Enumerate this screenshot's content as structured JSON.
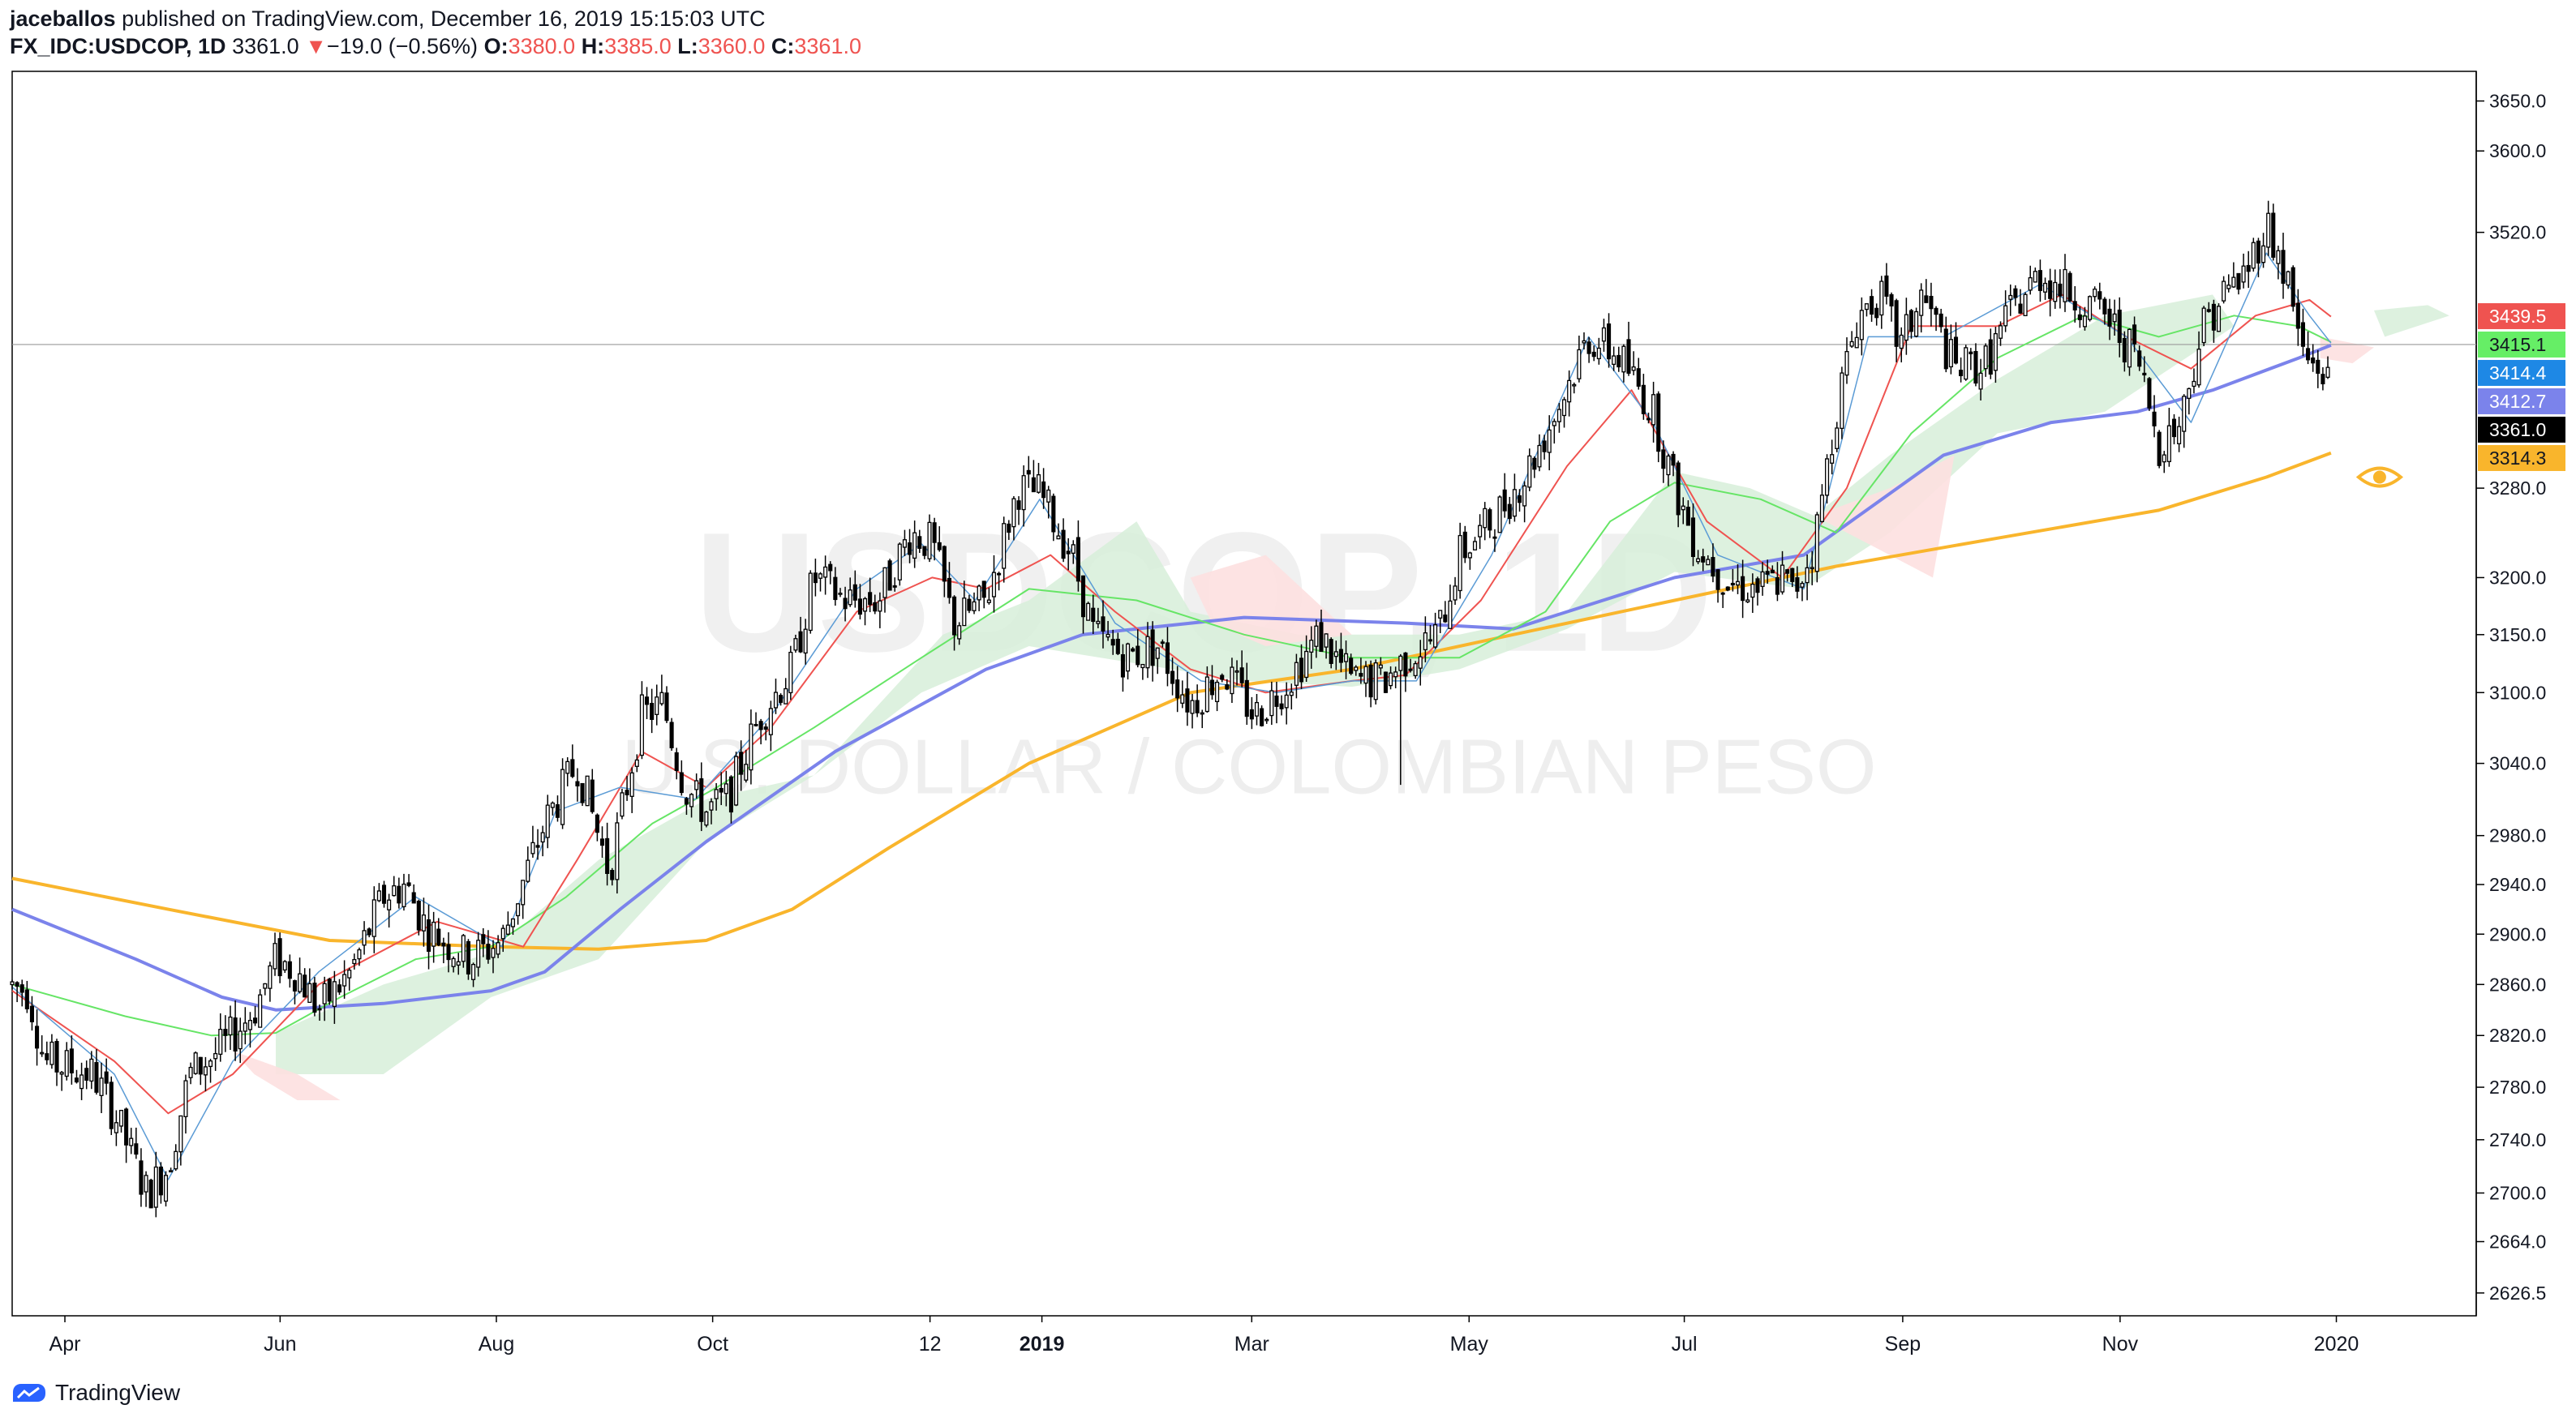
{
  "header": {
    "author": "jaceballos",
    "published_text": " published on TradingView.com, December 16, 2019 15:15:03 UTC",
    "symbol": "FX_IDC:USDCOP, 1D",
    "last_price": "3361.0",
    "down_arrow": "▼",
    "change": "−19.0 (−0.56%)",
    "open_label": "O:",
    "open": "3380.0",
    "high_label": "H:",
    "high": "3385.0",
    "low_label": "L:",
    "low": "3360.0",
    "close_label": "C:",
    "close": "3361.0"
  },
  "footer": {
    "brand": "TradingView"
  },
  "chart_data": {
    "type": "candlestick",
    "watermark": {
      "symbol": "USDCOP, 1D",
      "description": "U.S. DOLLAR / COLOMBIAN PESO"
    },
    "x_ticks": [
      {
        "label": "Apr",
        "t": 0.04,
        "bold": false
      },
      {
        "label": "Jun",
        "t": 2.04,
        "bold": false
      },
      {
        "label": "Aug",
        "t": 4.05,
        "bold": false
      },
      {
        "label": "Oct",
        "t": 6.06,
        "bold": false
      },
      {
        "label": "12",
        "t": 8.08,
        "bold": false
      },
      {
        "label": "2019",
        "t": 9.12,
        "bold": true
      },
      {
        "label": "Mar",
        "t": 11.07,
        "bold": false
      },
      {
        "label": "May",
        "t": 13.09,
        "bold": false
      },
      {
        "label": "Jul",
        "t": 15.09,
        "bold": false
      },
      {
        "label": "Sep",
        "t": 17.12,
        "bold": false
      },
      {
        "label": "Nov",
        "t": 19.14,
        "bold": false
      },
      {
        "label": "2020",
        "t": 21.15,
        "bold": false
      }
    ],
    "y_ticks": [
      2626.5,
      2664.0,
      2700.0,
      2740.0,
      2780.0,
      2820.0,
      2860.0,
      2900.0,
      2940.0,
      2980.0,
      3040.0,
      3100.0,
      3150.0,
      3200.0,
      3280.0,
      3520.0,
      3600.0,
      3650.0
    ],
    "y_scale": "log",
    "y_range": [
      2610,
      3680
    ],
    "x_range_months": [
      -0.45,
      22.45
    ],
    "price_line": 3412.7,
    "price_labels": [
      {
        "value": "3439.5",
        "y": 3439.5,
        "bg": "#ef5350",
        "fg": "#ffffff"
      },
      {
        "value": "3415.1",
        "y": 3415.1,
        "bg": "#66ee66",
        "fg": "#131722"
      },
      {
        "value": "3414.4",
        "y": 3414.4,
        "bg": "#1e88e5",
        "fg": "#ffffff"
      },
      {
        "value": "3412.7",
        "y": 3412.7,
        "bg": "#7b83eb",
        "fg": "#ffffff"
      },
      {
        "value": "3361.0",
        "y": 3361.0,
        "bg": "#000000",
        "fg": "#ffffff"
      },
      {
        "value": "3314.3",
        "y": 3314.3,
        "bg": "#f9b52c",
        "fg": "#131722"
      }
    ],
    "price_path": [
      [
        -0.45,
        2860
      ],
      [
        -0.3,
        2855
      ],
      [
        -0.15,
        2800
      ],
      [
        0.3,
        2790
      ],
      [
        0.5,
        2760
      ],
      [
        0.8,
        2700
      ],
      [
        1.0,
        2720
      ],
      [
        1.2,
        2790
      ],
      [
        1.5,
        2810
      ],
      [
        1.8,
        2840
      ],
      [
        2.0,
        2880
      ],
      [
        2.2,
        2870
      ],
      [
        2.4,
        2840
      ],
      [
        2.7,
        2870
      ],
      [
        3.0,
        2930
      ],
      [
        3.2,
        2940
      ],
      [
        3.4,
        2905
      ],
      [
        3.8,
        2880
      ],
      [
        4.1,
        2895
      ],
      [
        4.5,
        2990
      ],
      [
        4.8,
        3040
      ],
      [
        5.1,
        2950
      ],
      [
        5.4,
        3080
      ],
      [
        5.6,
        3090
      ],
      [
        5.8,
        3020
      ],
      [
        6.0,
        3000
      ],
      [
        6.2,
        3010
      ],
      [
        6.5,
        3080
      ],
      [
        6.8,
        3120
      ],
      [
        7.0,
        3200
      ],
      [
        7.3,
        3180
      ],
      [
        7.6,
        3180
      ],
      [
        7.9,
        3240
      ],
      [
        8.1,
        3230
      ],
      [
        8.3,
        3160
      ],
      [
        8.6,
        3180
      ],
      [
        8.9,
        3280
      ],
      [
        9.1,
        3275
      ],
      [
        9.4,
        3220
      ],
      [
        9.6,
        3150
      ],
      [
        9.9,
        3130
      ],
      [
        10.2,
        3140
      ],
      [
        10.5,
        3090
      ],
      [
        10.8,
        3120
      ],
      [
        11.1,
        3080
      ],
      [
        11.4,
        3110
      ],
      [
        11.7,
        3150
      ],
      [
        12.0,
        3110
      ],
      [
        12.3,
        3110
      ],
      [
        12.5,
        3130
      ],
      [
        12.8,
        3150
      ],
      [
        13.0,
        3220
      ],
      [
        13.3,
        3250
      ],
      [
        13.6,
        3290
      ],
      [
        13.9,
        3350
      ],
      [
        14.2,
        3420
      ],
      [
        14.5,
        3400
      ],
      [
        14.8,
        3350
      ],
      [
        15.0,
        3280
      ],
      [
        15.2,
        3230
      ],
      [
        15.5,
        3195
      ],
      [
        15.8,
        3190
      ],
      [
        16.0,
        3200
      ],
      [
        16.1,
        3185
      ],
      [
        16.3,
        3230
      ],
      [
        16.5,
        3350
      ],
      [
        16.7,
        3440
      ],
      [
        16.9,
        3460
      ],
      [
        17.1,
        3410
      ],
      [
        17.3,
        3460
      ],
      [
        17.6,
        3390
      ],
      [
        17.9,
        3395
      ],
      [
        18.1,
        3440
      ],
      [
        18.4,
        3480
      ],
      [
        18.7,
        3460
      ],
      [
        19.0,
        3440
      ],
      [
        19.3,
        3400
      ],
      [
        19.5,
        3320
      ],
      [
        19.7,
        3340
      ],
      [
        19.9,
        3430
      ],
      [
        20.1,
        3460
      ],
      [
        20.3,
        3480
      ],
      [
        20.5,
        3530
      ],
      [
        20.7,
        3470
      ],
      [
        20.85,
        3400
      ],
      [
        21.0,
        3390
      ],
      [
        21.1,
        3375
      ]
    ],
    "spikes": [
      {
        "t": 12.45,
        "low": 3022
      },
      {
        "t": 20.55,
        "high": 3548
      },
      {
        "t": 0.88,
        "low": 2682
      }
    ],
    "series": [
      {
        "type": "line",
        "color": "#f9b52c",
        "width": 4,
        "points": [
          [
            -0.45,
            2945
          ],
          [
            1.0,
            2920
          ],
          [
            2.5,
            2895
          ],
          [
            4.0,
            2890
          ],
          [
            5.0,
            2888
          ],
          [
            6.0,
            2895
          ],
          [
            6.8,
            2920
          ],
          [
            7.7,
            2970
          ],
          [
            9.0,
            3040
          ],
          [
            10.5,
            3100
          ],
          [
            12.0,
            3120
          ],
          [
            13.5,
            3150
          ],
          [
            15.0,
            3180
          ],
          [
            16.5,
            3210
          ],
          [
            18.0,
            3235
          ],
          [
            19.5,
            3260
          ],
          [
            20.5,
            3290
          ],
          [
            21.1,
            3312
          ]
        ]
      },
      {
        "type": "line",
        "color": "#7b83eb",
        "width": 4,
        "points": [
          [
            -0.45,
            2920
          ],
          [
            0.7,
            2880
          ],
          [
            1.5,
            2850
          ],
          [
            2.0,
            2840
          ],
          [
            3.0,
            2845
          ],
          [
            4.0,
            2855
          ],
          [
            4.5,
            2870
          ],
          [
            5.2,
            2920
          ],
          [
            6.0,
            2975
          ],
          [
            7.2,
            3050
          ],
          [
            8.6,
            3120
          ],
          [
            9.5,
            3150
          ],
          [
            11.0,
            3165
          ],
          [
            12.5,
            3160
          ],
          [
            13.5,
            3155
          ],
          [
            15.0,
            3200
          ],
          [
            16.2,
            3220
          ],
          [
            17.5,
            3310
          ],
          [
            18.5,
            3340
          ],
          [
            19.3,
            3350
          ],
          [
            20.0,
            3370
          ],
          [
            20.8,
            3400
          ],
          [
            21.1,
            3412
          ]
        ]
      },
      {
        "type": "line",
        "color": "#66e566",
        "width": 2,
        "points": [
          [
            -0.45,
            2860
          ],
          [
            0.6,
            2835
          ],
          [
            1.4,
            2820
          ],
          [
            2.0,
            2822
          ],
          [
            2.6,
            2850
          ],
          [
            3.3,
            2880
          ],
          [
            4.0,
            2890
          ],
          [
            4.7,
            2930
          ],
          [
            5.5,
            2990
          ],
          [
            6.1,
            3020
          ],
          [
            7.0,
            3070
          ],
          [
            8.0,
            3130
          ],
          [
            9.0,
            3190
          ],
          [
            10.0,
            3180
          ],
          [
            11.0,
            3150
          ],
          [
            12.0,
            3130
          ],
          [
            13.0,
            3130
          ],
          [
            13.8,
            3170
          ],
          [
            14.4,
            3250
          ],
          [
            15.0,
            3285
          ],
          [
            15.8,
            3270
          ],
          [
            16.5,
            3240
          ],
          [
            17.2,
            3330
          ],
          [
            18.0,
            3400
          ],
          [
            18.8,
            3440
          ],
          [
            19.5,
            3420
          ],
          [
            20.2,
            3440
          ],
          [
            20.8,
            3430
          ],
          [
            21.1,
            3415
          ]
        ]
      },
      {
        "type": "line",
        "color": "#ef5350",
        "width": 2,
        "points": [
          [
            -0.45,
            2855
          ],
          [
            0.5,
            2800
          ],
          [
            1.0,
            2760
          ],
          [
            1.6,
            2790
          ],
          [
            2.4,
            2860
          ],
          [
            3.5,
            2910
          ],
          [
            4.3,
            2890
          ],
          [
            4.8,
            2960
          ],
          [
            5.4,
            3050
          ],
          [
            6.0,
            3020
          ],
          [
            6.6,
            3070
          ],
          [
            7.4,
            3170
          ],
          [
            8.1,
            3200
          ],
          [
            8.6,
            3190
          ],
          [
            9.2,
            3220
          ],
          [
            9.8,
            3170
          ],
          [
            10.5,
            3120
          ],
          [
            11.2,
            3100
          ],
          [
            12.0,
            3110
          ],
          [
            12.5,
            3115
          ],
          [
            13.2,
            3180
          ],
          [
            14.0,
            3300
          ],
          [
            14.6,
            3370
          ],
          [
            15.3,
            3250
          ],
          [
            16.0,
            3200
          ],
          [
            16.6,
            3280
          ],
          [
            17.2,
            3430
          ],
          [
            18.0,
            3430
          ],
          [
            18.6,
            3460
          ],
          [
            19.2,
            3420
          ],
          [
            19.8,
            3390
          ],
          [
            20.4,
            3440
          ],
          [
            20.9,
            3455
          ],
          [
            21.1,
            3439
          ]
        ]
      },
      {
        "type": "line",
        "color": "#5b9bd5",
        "width": 1.5,
        "points": [
          [
            -0.45,
            2858
          ],
          [
            0.5,
            2790
          ],
          [
            1.0,
            2710
          ],
          [
            1.6,
            2800
          ],
          [
            2.4,
            2870
          ],
          [
            3.3,
            2930
          ],
          [
            4.1,
            2890
          ],
          [
            4.6,
            3000
          ],
          [
            5.2,
            3020
          ],
          [
            5.9,
            3010
          ],
          [
            6.6,
            3080
          ],
          [
            7.4,
            3190
          ],
          [
            8.0,
            3230
          ],
          [
            8.5,
            3180
          ],
          [
            9.1,
            3270
          ],
          [
            9.8,
            3160
          ],
          [
            10.6,
            3110
          ],
          [
            11.3,
            3100
          ],
          [
            12.0,
            3110
          ],
          [
            12.6,
            3110
          ],
          [
            13.3,
            3220
          ],
          [
            14.2,
            3420
          ],
          [
            14.8,
            3340
          ],
          [
            15.4,
            3220
          ],
          [
            16.2,
            3190
          ],
          [
            16.8,
            3420
          ],
          [
            17.5,
            3420
          ],
          [
            18.4,
            3470
          ],
          [
            19.2,
            3420
          ],
          [
            19.8,
            3340
          ],
          [
            20.5,
            3500
          ],
          [
            20.9,
            3440
          ],
          [
            21.1,
            3414
          ]
        ]
      }
    ],
    "cloud_green": [
      [
        [
          2.0,
          2822
        ],
        [
          3.0,
          2860
        ],
        [
          4.0,
          2885
        ],
        [
          5.0,
          2960
        ],
        [
          6.0,
          3010
        ],
        [
          7.0,
          3030
        ],
        [
          8.2,
          3150
        ],
        [
          9.0,
          3180
        ],
        [
          10.0,
          3250
        ],
        [
          10.5,
          3170
        ],
        [
          11.5,
          3150
        ],
        [
          12.0,
          3150
        ],
        [
          13.0,
          3150
        ],
        [
          14.0,
          3170
        ],
        [
          15.0,
          3295
        ],
        [
          15.7,
          3280
        ],
        [
          16.3,
          3255
        ],
        [
          17.0,
          3310
        ],
        [
          18.0,
          3380
        ],
        [
          19.0,
          3440
        ],
        [
          20.0,
          3460
        ],
        [
          20.2,
          3430
        ],
        [
          19.0,
          3350
        ],
        [
          18.0,
          3330
        ],
        [
          17.0,
          3240
        ],
        [
          16.2,
          3190
        ],
        [
          15.0,
          3205
        ],
        [
          14.0,
          3155
        ],
        [
          13.0,
          3120
        ],
        [
          12.0,
          3105
        ],
        [
          11.0,
          3110
        ],
        [
          10.0,
          3125
        ],
        [
          9.0,
          3140
        ],
        [
          8.0,
          3100
        ],
        [
          7.0,
          3030
        ],
        [
          6.0,
          2975
        ],
        [
          5.0,
          2880
        ],
        [
          4.0,
          2850
        ],
        [
          3.0,
          2790
        ],
        [
          2.0,
          2790
        ]
      ],
      [
        [
          21.5,
          3445
        ],
        [
          22.0,
          3450
        ],
        [
          22.2,
          3440
        ],
        [
          21.6,
          3420
        ]
      ]
    ],
    "cloud_red": [
      [
        [
          1.6,
          2808
        ],
        [
          2.2,
          2790
        ],
        [
          2.6,
          2770
        ],
        [
          2.2,
          2770
        ],
        [
          1.8,
          2790
        ]
      ],
      [
        [
          10.5,
          3200
        ],
        [
          11.2,
          3220
        ],
        [
          12.0,
          3150
        ],
        [
          11.2,
          3140
        ],
        [
          10.7,
          3160
        ]
      ],
      [
        [
          16.3,
          3255
        ],
        [
          17.0,
          3280
        ],
        [
          17.6,
          3310
        ],
        [
          17.4,
          3200
        ],
        [
          16.8,
          3230
        ]
      ],
      [
        [
          21.0,
          3420
        ],
        [
          21.5,
          3410
        ],
        [
          21.3,
          3395
        ],
        [
          21.0,
          3400
        ]
      ]
    ],
    "eye_icon": {
      "t": 21.1,
      "y": 3290,
      "color": "#f9b52c"
    }
  }
}
